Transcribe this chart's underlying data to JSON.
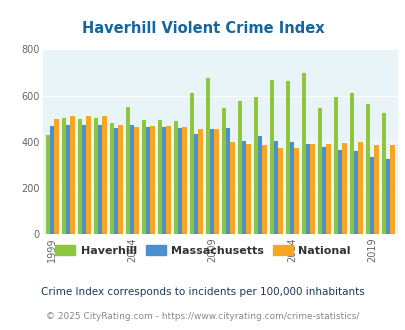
{
  "title": "Haverhill Violent Crime Index",
  "subtitle": "Crime Index corresponds to incidents per 100,000 inhabitants",
  "footer": "© 2025 CityRating.com - https://www.cityrating.com/crime-statistics/",
  "years": [
    1999,
    2000,
    2001,
    2002,
    2003,
    2004,
    2005,
    2006,
    2007,
    2008,
    2009,
    2010,
    2011,
    2012,
    2013,
    2014,
    2015,
    2016,
    2017,
    2018,
    2019,
    2020
  ],
  "haverhill": [
    430,
    505,
    500,
    505,
    480,
    550,
    495,
    495,
    490,
    610,
    675,
    545,
    575,
    595,
    670,
    665,
    700,
    545,
    595,
    610,
    565,
    525
  ],
  "massachusetts": [
    470,
    475,
    475,
    475,
    460,
    475,
    465,
    465,
    460,
    435,
    455,
    460,
    405,
    425,
    405,
    400,
    390,
    380,
    365,
    360,
    335,
    325
  ],
  "national": [
    500,
    510,
    510,
    510,
    475,
    465,
    470,
    470,
    465,
    455,
    455,
    400,
    390,
    385,
    375,
    375,
    390,
    390,
    395,
    400,
    385,
    385
  ],
  "bar_width": 0.27,
  "colors": {
    "haverhill": "#8dc63f",
    "massachusetts": "#4d8fcc",
    "national": "#f5a623"
  },
  "ylim": [
    0,
    800
  ],
  "yticks": [
    0,
    200,
    400,
    600,
    800
  ],
  "xtick_years": [
    1999,
    2004,
    2009,
    2014,
    2019
  ],
  "bg_color": "#e8f4f8",
  "title_color": "#1565a0",
  "subtitle_color": "#1a3a5c",
  "footer_color": "#888888",
  "grid_color": "#ffffff",
  "legend_text_color": "#333333"
}
